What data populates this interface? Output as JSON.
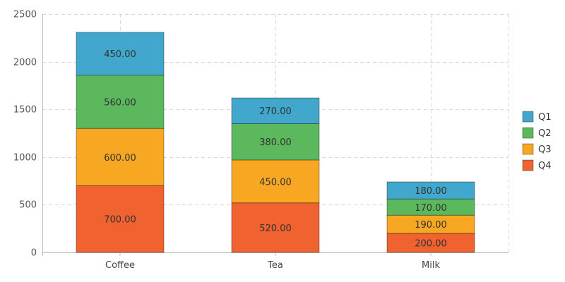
{
  "chart_data": {
    "type": "bar",
    "stacked": true,
    "categories": [
      "Coffee",
      "Tea",
      "Milk"
    ],
    "series": [
      {
        "name": "Q1",
        "values": [
          450,
          270,
          180
        ],
        "color": "#42a7cc"
      },
      {
        "name": "Q2",
        "values": [
          560,
          380,
          170
        ],
        "color": "#5cb85c"
      },
      {
        "name": "Q3",
        "values": [
          600,
          450,
          190
        ],
        "color": "#f8a722"
      },
      {
        "name": "Q4",
        "values": [
          700,
          520,
          200
        ],
        "color": "#f0622f"
      }
    ],
    "ylim": [
      0,
      2500
    ],
    "yticks": [
      0,
      500,
      1000,
      1500,
      2000,
      2500
    ],
    "value_format_decimals": 2,
    "grid": true,
    "legend_position": "right"
  }
}
